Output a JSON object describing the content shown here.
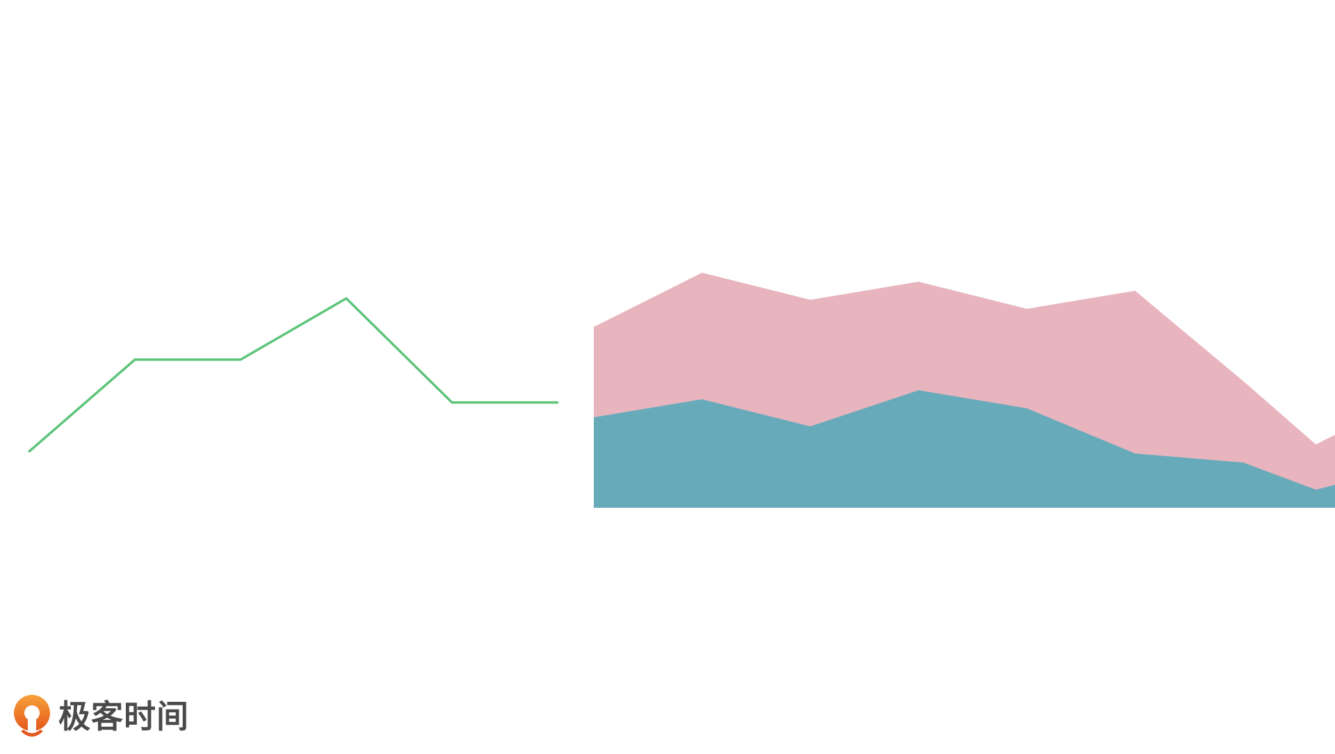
{
  "brand": {
    "name": "极客时间",
    "accent": "#f07a1e",
    "icon": "geektime-logo-icon"
  },
  "chart_data": [
    {
      "type": "line",
      "x": [
        1,
        2,
        3,
        4,
        5,
        6
      ],
      "series": [
        {
          "values": [
            2,
            5,
            5,
            7,
            3.6,
            3.6
          ],
          "color": "#5ec47a"
        }
      ],
      "ylim": [
        0,
        10
      ],
      "grid": false,
      "axes_visible": false
    },
    {
      "type": "area",
      "x": [
        1,
        2,
        3,
        4,
        5,
        6,
        7,
        8,
        7.67
      ],
      "series": [
        {
          "values": [
            5,
            6,
            4.5,
            6.5,
            5.5,
            3,
            2.5,
            1.5,
            1
          ],
          "color": "#67abbb"
        },
        {
          "values": [
            10,
            13,
            11.5,
            12.5,
            11,
            12,
            7,
            4.5,
            3.5
          ],
          "color": "#e8b4be"
        }
      ],
      "ylim": [
        0,
        16
      ],
      "grid": false,
      "axes_visible": false,
      "stacked": false
    }
  ]
}
